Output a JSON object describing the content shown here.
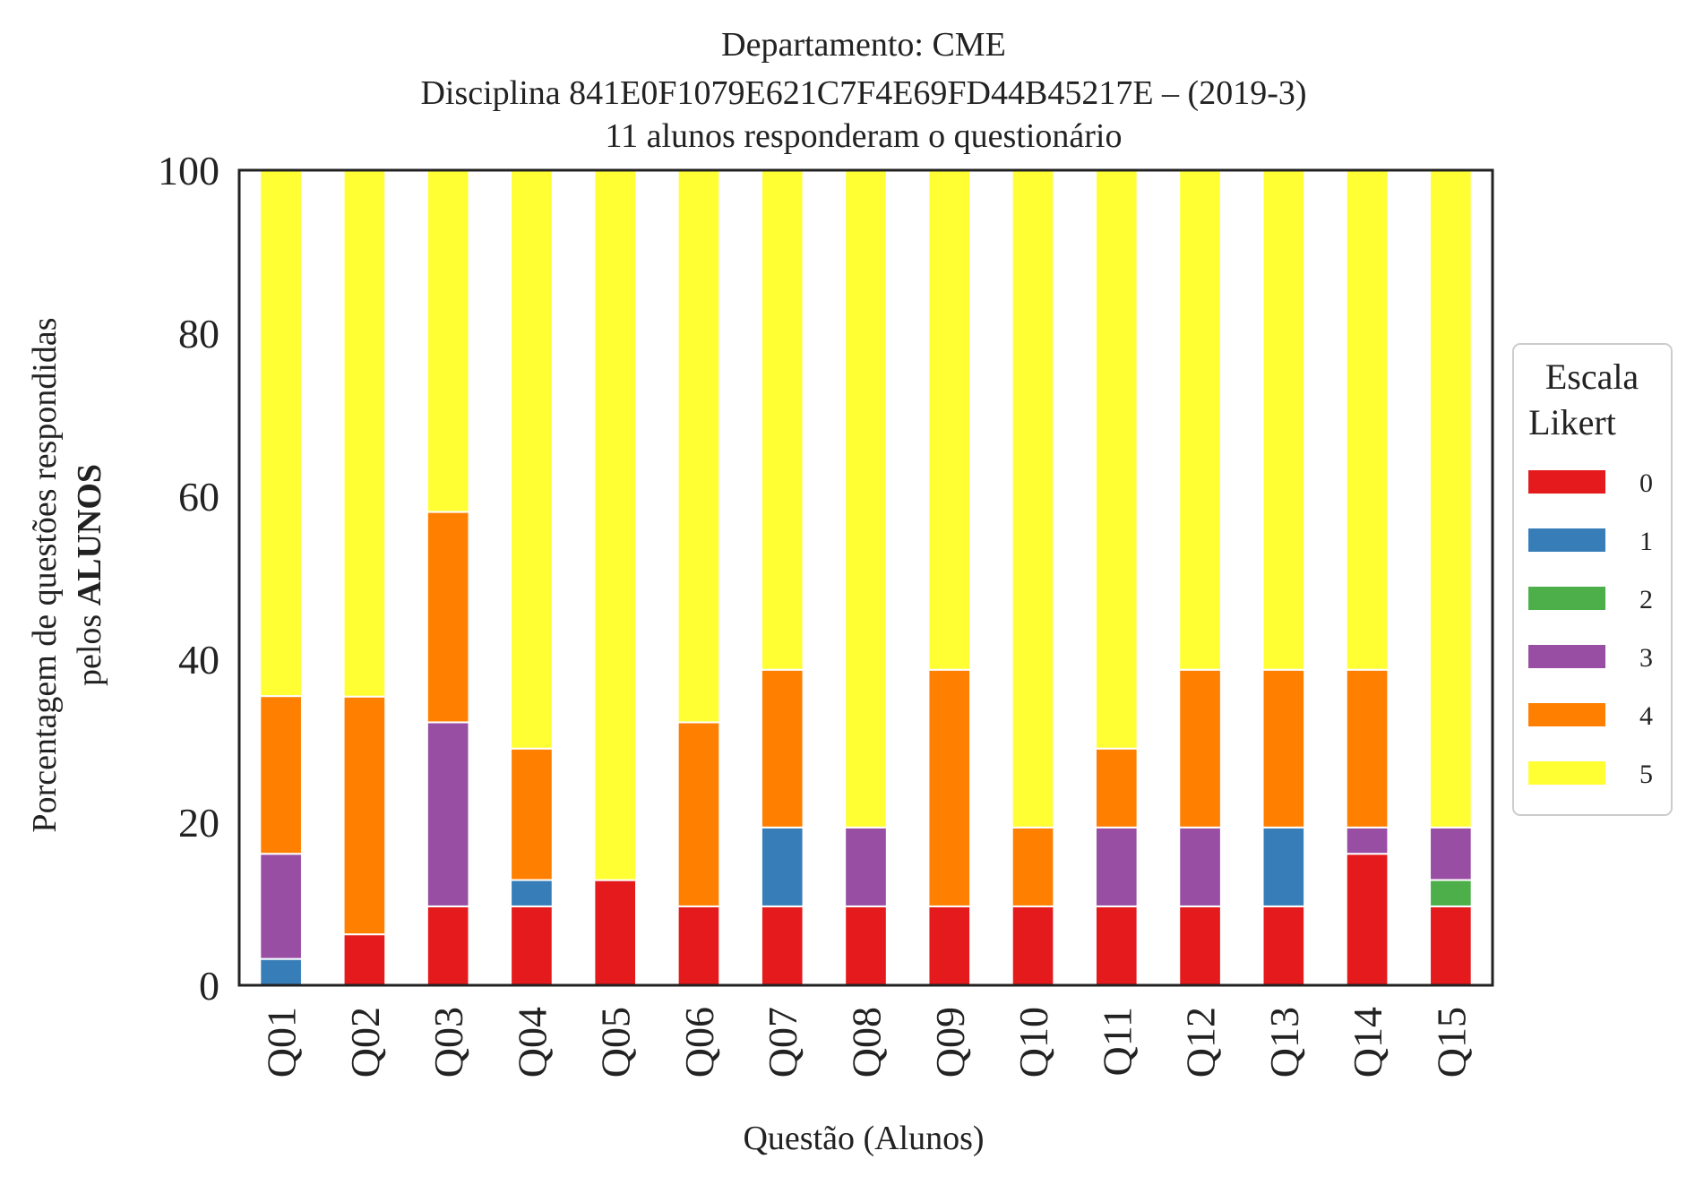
{
  "chart_data": {
    "type": "bar",
    "stacked": true,
    "title_lines": [
      "Departamento: CME",
      "Disciplina 841E0F1079E621C7F4E69FD44B45217E – (2019-3)",
      "11 alunos responderam o questionário"
    ],
    "xlabel": "Questão (Alunos)",
    "ylabel_line1": "Porcentagem de questões respondidas",
    "ylabel_line2_prefix": "pelos ",
    "ylabel_line2_bold": "ALUNOS",
    "ylim": [
      0,
      100
    ],
    "yticks": [
      "0",
      "20",
      "40",
      "60",
      "80",
      "100"
    ],
    "grid": false,
    "legend": {
      "title_lines": [
        "Escala",
        "Likert"
      ],
      "placement": "right"
    },
    "categories": [
      "Q01",
      "Q02",
      "Q03",
      "Q04",
      "Q05",
      "Q06",
      "Q07",
      "Q08",
      "Q09",
      "Q10",
      "Q11",
      "Q12",
      "Q13",
      "Q14",
      "Q15"
    ],
    "series": [
      {
        "name": "0",
        "color": "#e41a1c",
        "values": [
          0,
          6.25,
          9.68,
          9.68,
          12.9,
          9.68,
          9.68,
          9.68,
          9.68,
          9.68,
          9.68,
          9.68,
          9.68,
          16.13,
          9.68
        ]
      },
      {
        "name": "1",
        "color": "#377eb8",
        "values": [
          3.23,
          0,
          0,
          3.23,
          0,
          0,
          9.68,
          0,
          0,
          0,
          0,
          0,
          9.68,
          0,
          0
        ]
      },
      {
        "name": "2",
        "color": "#4daf4a",
        "values": [
          0,
          0,
          0,
          0,
          0,
          0,
          0,
          0,
          0,
          0,
          0,
          0,
          0,
          0,
          3.23
        ]
      },
      {
        "name": "3",
        "color": "#984ea3",
        "values": [
          12.9,
          0,
          22.58,
          0,
          0,
          0,
          0,
          9.68,
          0,
          0,
          9.68,
          9.68,
          0,
          3.23,
          6.45
        ]
      },
      {
        "name": "4",
        "color": "#ff7f00",
        "values": [
          19.35,
          29.17,
          25.81,
          16.13,
          0,
          22.58,
          19.35,
          0,
          29.03,
          9.68,
          9.68,
          19.35,
          19.35,
          19.35,
          0
        ]
      },
      {
        "name": "5",
        "color": "#ffff33",
        "values": [
          64.52,
          64.58,
          41.93,
          70.96,
          87.1,
          67.74,
          61.29,
          80.64,
          61.29,
          80.64,
          70.96,
          61.29,
          61.29,
          61.29,
          80.64
        ]
      }
    ]
  }
}
